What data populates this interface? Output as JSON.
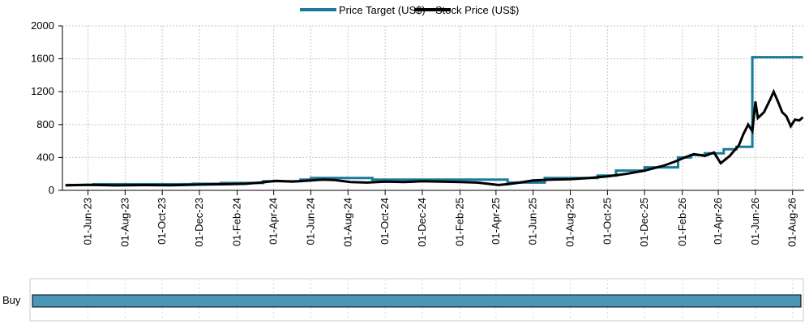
{
  "chart_data": {
    "type": "line",
    "title": "",
    "xlabel": "",
    "ylabel": "",
    "ylim": [
      0,
      2000
    ],
    "xlim": [
      "2023-04-20",
      "2026-08-20"
    ],
    "grid": true,
    "legend_position": "top-center",
    "y_ticks": [
      "0",
      "400",
      "800",
      "1200",
      "1600",
      "2000"
    ],
    "x_ticks": [
      {
        "date": "2023-06-01",
        "label": "01-Jun-23"
      },
      {
        "date": "2023-08-01",
        "label": "01-Aug-23"
      },
      {
        "date": "2023-10-01",
        "label": "01-Oct-23"
      },
      {
        "date": "2023-12-01",
        "label": "01-Dec-23"
      },
      {
        "date": "2024-02-01",
        "label": "01-Feb-24"
      },
      {
        "date": "2024-04-01",
        "label": "01-Apr-24"
      },
      {
        "date": "2024-06-01",
        "label": "01-Jun-24"
      },
      {
        "date": "2024-08-01",
        "label": "01-Aug-24"
      },
      {
        "date": "2024-10-01",
        "label": "01-Oct-24"
      },
      {
        "date": "2024-12-01",
        "label": "01-Dec-24"
      },
      {
        "date": "2025-02-01",
        "label": "01-Feb-25"
      },
      {
        "date": "2025-04-01",
        "label": "01-Apr-25"
      },
      {
        "date": "2025-06-01",
        "label": "01-Jun-25"
      },
      {
        "date": "2025-08-01",
        "label": "01-Aug-25"
      },
      {
        "date": "2025-10-01",
        "label": "01-Oct-25"
      },
      {
        "date": "2025-12-01",
        "label": "01-Dec-25"
      },
      {
        "date": "2026-02-01",
        "label": "01-Feb-26"
      },
      {
        "date": "2026-04-01",
        "label": "01-Apr-26"
      },
      {
        "date": "2026-06-01",
        "label": "01-Jun-26"
      },
      {
        "date": "2026-08-01",
        "label": "01-Aug-26"
      }
    ],
    "series": [
      {
        "name": "Price Target (US$)",
        "color": "#1a7a9a",
        "style": "step",
        "points": [
          [
            "2023-04-25",
            65
          ],
          [
            "2023-06-10",
            65
          ],
          [
            "2023-06-10",
            75
          ],
          [
            "2023-11-20",
            75
          ],
          [
            "2023-11-20",
            80
          ],
          [
            "2024-01-05",
            80
          ],
          [
            "2024-01-05",
            90
          ],
          [
            "2024-03-15",
            90
          ],
          [
            "2024-03-15",
            110
          ],
          [
            "2024-05-15",
            110
          ],
          [
            "2024-05-15",
            130
          ],
          [
            "2024-06-01",
            130
          ],
          [
            "2024-06-01",
            150
          ],
          [
            "2024-09-10",
            150
          ],
          [
            "2024-09-10",
            130
          ],
          [
            "2025-04-20",
            130
          ],
          [
            "2025-04-20",
            95
          ],
          [
            "2025-06-20",
            95
          ],
          [
            "2025-06-20",
            150
          ],
          [
            "2025-09-15",
            150
          ],
          [
            "2025-09-15",
            180
          ],
          [
            "2025-10-15",
            180
          ],
          [
            "2025-10-15",
            240
          ],
          [
            "2025-12-01",
            240
          ],
          [
            "2025-12-01",
            280
          ],
          [
            "2026-01-25",
            280
          ],
          [
            "2026-01-25",
            400
          ],
          [
            "2026-02-15",
            400
          ],
          [
            "2026-02-15",
            430
          ],
          [
            "2026-03-10",
            430
          ],
          [
            "2026-03-10",
            450
          ],
          [
            "2026-04-10",
            450
          ],
          [
            "2026-04-10",
            500
          ],
          [
            "2026-05-01",
            500
          ],
          [
            "2026-05-01",
            530
          ],
          [
            "2026-05-27",
            530
          ],
          [
            "2026-05-27",
            1620
          ],
          [
            "2026-08-18",
            1620
          ]
        ]
      },
      {
        "name": "Stock Price (US$)",
        "color": "#000000",
        "style": "line",
        "points": [
          [
            "2023-04-25",
            60
          ],
          [
            "2023-06-01",
            68
          ],
          [
            "2023-07-15",
            60
          ],
          [
            "2023-09-01",
            64
          ],
          [
            "2023-10-15",
            62
          ],
          [
            "2023-12-01",
            70
          ],
          [
            "2024-01-15",
            75
          ],
          [
            "2024-02-15",
            80
          ],
          [
            "2024-03-10",
            95
          ],
          [
            "2024-04-05",
            115
          ],
          [
            "2024-05-01",
            105
          ],
          [
            "2024-06-01",
            120
          ],
          [
            "2024-06-20",
            130
          ],
          [
            "2024-07-10",
            125
          ],
          [
            "2024-08-05",
            100
          ],
          [
            "2024-09-01",
            95
          ],
          [
            "2024-10-01",
            105
          ],
          [
            "2024-11-01",
            100
          ],
          [
            "2024-12-01",
            110
          ],
          [
            "2025-01-01",
            105
          ],
          [
            "2025-02-01",
            100
          ],
          [
            "2025-03-01",
            95
          ],
          [
            "2025-04-05",
            65
          ],
          [
            "2025-04-20",
            75
          ],
          [
            "2025-05-10",
            95
          ],
          [
            "2025-06-01",
            120
          ],
          [
            "2025-07-01",
            130
          ],
          [
            "2025-08-01",
            135
          ],
          [
            "2025-09-01",
            150
          ],
          [
            "2025-10-01",
            170
          ],
          [
            "2025-11-01",
            200
          ],
          [
            "2025-12-01",
            240
          ],
          [
            "2026-01-01",
            300
          ],
          [
            "2026-01-20",
            350
          ],
          [
            "2026-02-05",
            400
          ],
          [
            "2026-02-20",
            440
          ],
          [
            "2026-03-10",
            420
          ],
          [
            "2026-03-25",
            460
          ],
          [
            "2026-04-05",
            330
          ],
          [
            "2026-04-20",
            420
          ],
          [
            "2026-05-05",
            550
          ],
          [
            "2026-05-12",
            680
          ],
          [
            "2026-05-20",
            800
          ],
          [
            "2026-05-27",
            720
          ],
          [
            "2026-06-01",
            1080
          ],
          [
            "2026-06-05",
            880
          ],
          [
            "2026-06-15",
            950
          ],
          [
            "2026-06-25",
            1100
          ],
          [
            "2026-07-01",
            1200
          ],
          [
            "2026-07-08",
            1080
          ],
          [
            "2026-07-15",
            950
          ],
          [
            "2026-07-22",
            900
          ],
          [
            "2026-07-29",
            780
          ],
          [
            "2026-08-05",
            860
          ],
          [
            "2026-08-12",
            850
          ],
          [
            "2026-08-18",
            890
          ]
        ]
      }
    ]
  },
  "rating_panel": {
    "label": "Buy",
    "color": "#4a97b8",
    "from": "2023-04-20",
    "to": "2026-08-20"
  }
}
